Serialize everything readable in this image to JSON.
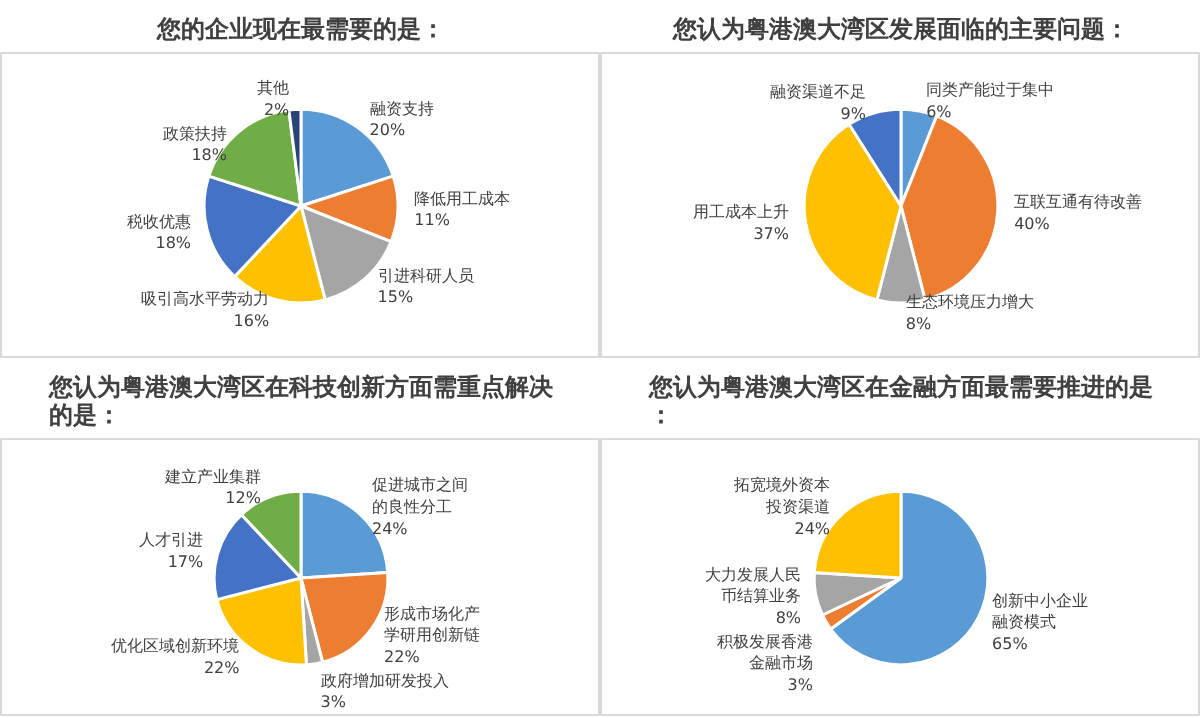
{
  "chart_data": [
    {
      "type": "pie",
      "title": "您的企业现在最需要的是：",
      "categories": [
        "融资支持",
        "降低用工成本",
        "引进科研人员",
        "吸引高水平劳动力",
        "税收优惠",
        "政策扶持",
        "其他"
      ],
      "values": [
        20,
        11,
        15,
        16,
        18,
        18,
        2
      ],
      "value_labels": [
        "20%",
        "11%",
        "15%",
        "16%",
        "18%",
        "18%",
        "2%"
      ],
      "colors": [
        "#5b9bd5",
        "#ed7d31",
        "#a5a5a5",
        "#ffc000",
        "#4472c4",
        "#70ad47",
        "#264478"
      ]
    },
    {
      "type": "pie",
      "title": "您认为粤港澳大湾区发展面临的主要问题：",
      "categories": [
        "同类产能过于集中",
        "互联互通有待改善",
        "生态环境压力增大",
        "用工成本上升",
        "融资渠道不足"
      ],
      "values": [
        6,
        40,
        8,
        37,
        9
      ],
      "value_labels": [
        "6%",
        "40%",
        "8%",
        "37%",
        "9%"
      ],
      "colors": [
        "#5b9bd5",
        "#ed7d31",
        "#a5a5a5",
        "#ffc000",
        "#4472c4"
      ]
    },
    {
      "type": "pie",
      "title": "您认为粤港澳大湾区在科技创新方面需重点解决的是：",
      "categories": [
        "促进城市之间的良性分工",
        "形成市场化产学研用创新链",
        "政府增加研发投入",
        "优化区域创新环境",
        "人才引进",
        "建立产业集群"
      ],
      "values": [
        24,
        22,
        3,
        22,
        17,
        12
      ],
      "value_labels": [
        "24%",
        "22%",
        "3%",
        "22%",
        "17%",
        "12%"
      ],
      "colors": [
        "#5b9bd5",
        "#ed7d31",
        "#a5a5a5",
        "#ffc000",
        "#4472c4",
        "#70ad47"
      ]
    },
    {
      "type": "pie",
      "title": "您认为粤港澳大湾区在金融方面最需要推进的是：",
      "categories": [
        "创新中小企业融资模式",
        "积极发展香港金融市场",
        "大力发展人民币结算业务",
        "拓宽境外资本投资渠道"
      ],
      "values": [
        65,
        3,
        8,
        24
      ],
      "value_labels": [
        "65%",
        "3%",
        "8%",
        "24%"
      ],
      "colors": [
        "#5b9bd5",
        "#ed7d31",
        "#a5a5a5",
        "#ffc000"
      ]
    }
  ]
}
